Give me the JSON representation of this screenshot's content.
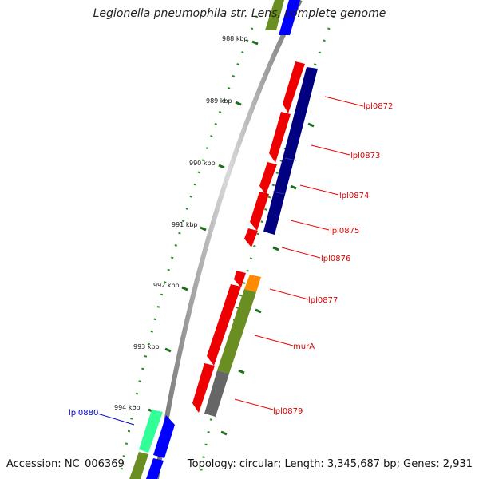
{
  "title": "Legionella pneumophila str. Lens, complete genome",
  "accession": "Accession: NC_006369",
  "topology": "Topology: circular; Length: 3,345,687 bp; Genes: 2,931",
  "ruler_labels": [
    "988 kbp",
    "989 kbp",
    "990 kbp",
    "991 kbp",
    "992 kbp",
    "993 kbp",
    "994 kbp"
  ],
  "gene_labels": [
    {
      "name": "lpl0872",
      "color": "#e00000"
    },
    {
      "name": "lpl0873",
      "color": "#e00000"
    },
    {
      "name": "lpl0874",
      "color": "#e00000"
    },
    {
      "name": "lpl0875",
      "color": "#e00000"
    },
    {
      "name": "lpl0876",
      "color": "#e00000"
    },
    {
      "name": "lpl0877",
      "color": "#e00000"
    },
    {
      "name": "murA",
      "color": "#e00000"
    },
    {
      "name": "lpl0879",
      "color": "#e00000"
    },
    {
      "name": "lpl0880",
      "color": "#0000cc"
    }
  ],
  "colors": {
    "backbone": "#8c8c8c",
    "forward_gene": "#ee0000",
    "reverse_gene": "#000080",
    "blue_gene": "#0000ff",
    "olive": "#6b8e23",
    "orange": "#ff8c00",
    "gray_feature": "#666666",
    "mint": "#33ff99",
    "ruler_tick": "#006400"
  }
}
